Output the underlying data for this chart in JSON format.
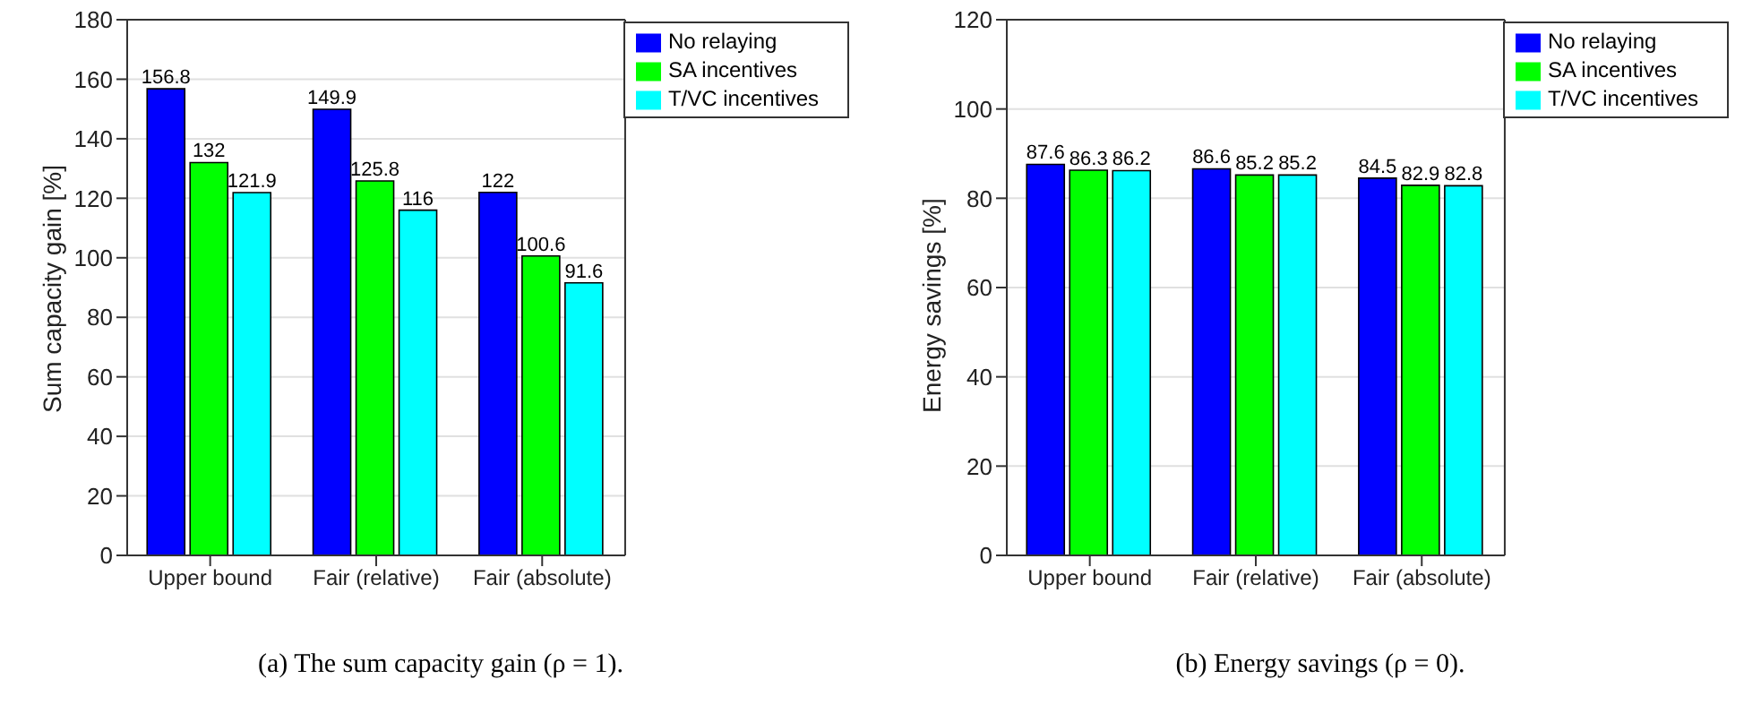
{
  "chart_data": [
    {
      "type": "bar",
      "ylabel": "Sum capacity gain [%]",
      "categories": [
        "Upper bound",
        "Fair (relative)",
        "Fair (absolute)"
      ],
      "series": [
        {
          "name": "No relaying",
          "color": "#0000ff",
          "values": [
            156.8,
            149.9,
            122
          ]
        },
        {
          "name": "SA incentives",
          "color": "#00ff00",
          "values": [
            132,
            125.8,
            100.6
          ]
        },
        {
          "name": "T/VC incentives",
          "color": "#00ffff",
          "values": [
            121.9,
            116,
            91.6
          ]
        }
      ],
      "ylim": [
        0,
        180
      ],
      "yticks": [
        0,
        20,
        40,
        60,
        80,
        100,
        120,
        140,
        160,
        180
      ],
      "grid": "y",
      "legend": "top right",
      "data_labels": true,
      "annotations": [
        "(a) The sum capacity gain (ρ = 1)."
      ]
    },
    {
      "type": "bar",
      "ylabel": "Energy savings [%]",
      "categories": [
        "Upper bound",
        "Fair (relative)",
        "Fair (absolute)"
      ],
      "series": [
        {
          "name": "No relaying",
          "color": "#0000ff",
          "values": [
            87.6,
            86.6,
            84.5
          ]
        },
        {
          "name": "SA incentives",
          "color": "#00ff00",
          "values": [
            86.3,
            85.2,
            82.9
          ]
        },
        {
          "name": "T/VC incentives",
          "color": "#00ffff",
          "values": [
            86.2,
            85.2,
            82.8
          ]
        }
      ],
      "ylim": [
        0,
        120
      ],
      "yticks": [
        0,
        20,
        40,
        60,
        80,
        100,
        120
      ],
      "grid": "y",
      "legend": "top right",
      "data_labels": true,
      "annotations": [
        "(b) Energy savings (ρ = 0)."
      ]
    }
  ]
}
